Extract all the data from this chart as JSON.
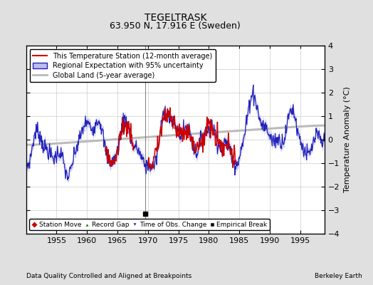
{
  "title": "TEGELTRASK",
  "subtitle": "63.950 N, 17.916 E (Sweden)",
  "ylabel": "Temperature Anomaly (°C)",
  "xlabel_note": "Data Quality Controlled and Aligned at Breakpoints",
  "credit": "Berkeley Earth",
  "ylim": [
    -4,
    4
  ],
  "xlim": [
    1950,
    1999
  ],
  "xticks": [
    1955,
    1960,
    1965,
    1970,
    1975,
    1980,
    1985,
    1990,
    1995
  ],
  "yticks": [
    -4,
    -3,
    -2,
    -1,
    0,
    1,
    2,
    3,
    4
  ],
  "station_color": "#cc0000",
  "regional_color": "#2222bb",
  "regional_fill_color": "#bbbbee",
  "global_color": "#bbbbbb",
  "background_color": "#e0e0e0",
  "plot_bg_color": "#ffffff",
  "grid_color": "#cccccc",
  "empirical_break_year": 1969.5,
  "title_fontsize": 10,
  "subtitle_fontsize": 9,
  "ylabel_fontsize": 8,
  "tick_fontsize": 8,
  "legend_fontsize": 7
}
